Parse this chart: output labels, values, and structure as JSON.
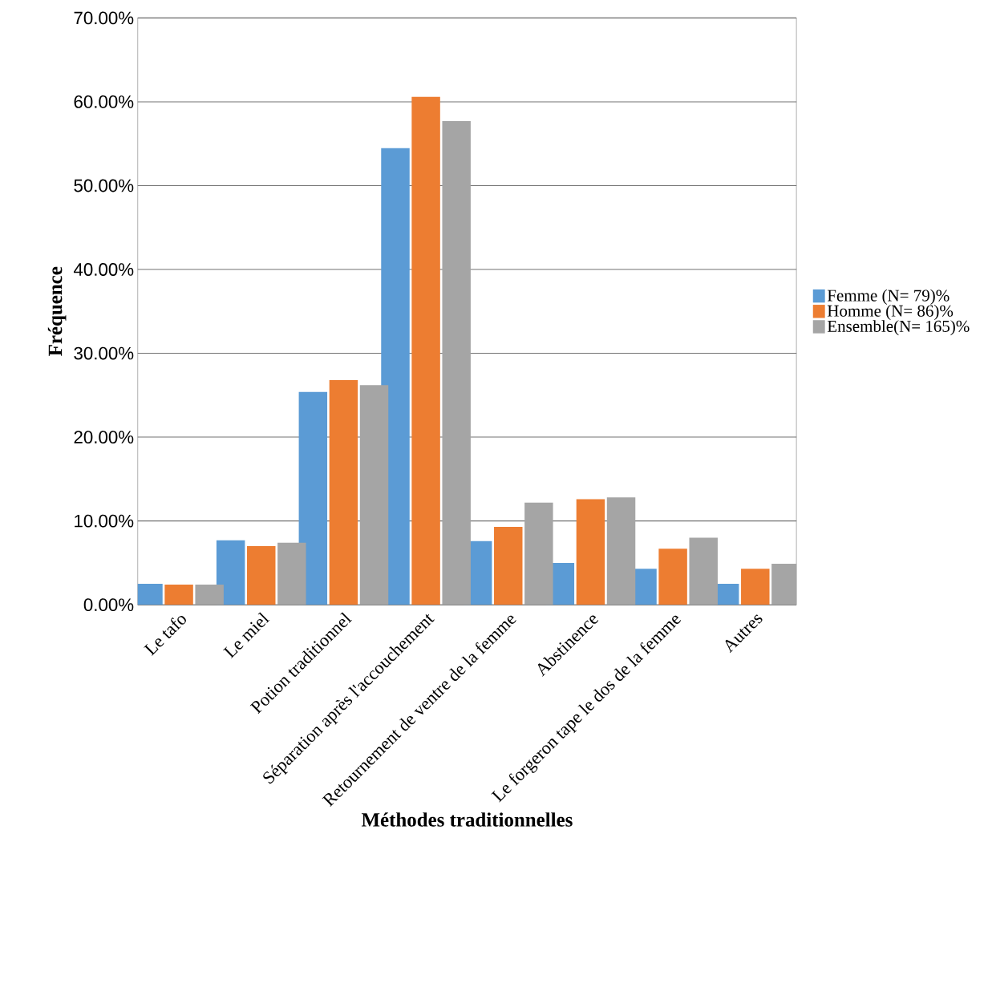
{
  "chart_data": {
    "type": "bar",
    "xlabel": "Méthodes traditionnelles",
    "ylabel": "Fréquence",
    "categories": [
      "Le tafo",
      "Le miel",
      "Potion traditionnel",
      "Séparation  après l'accouchement",
      "Retournement  de ventre de la femme",
      "Abstinence",
      "Le forgeron tape le dos de la femme",
      "Autres"
    ],
    "series": [
      {
        "name": "Femme (N=  79)%",
        "color": "#5b9bd5",
        "values": [
          2.5,
          7.7,
          25.4,
          54.5,
          7.6,
          5.0,
          4.3,
          2.5
        ]
      },
      {
        "name": "Homme (N=  86)%",
        "color": "#ed7d31",
        "values": [
          2.4,
          7.0,
          26.8,
          60.6,
          9.3,
          12.6,
          6.7,
          4.3
        ]
      },
      {
        "name": "Ensemble(N=  165)%",
        "color": "#a5a5a5",
        "values": [
          2.4,
          7.4,
          26.2,
          57.7,
          12.2,
          12.8,
          8.0,
          4.9
        ]
      }
    ],
    "ylim": [
      0,
      70
    ],
    "yticks": [
      {
        "value": 0,
        "label": "0.00%"
      },
      {
        "value": 10,
        "label": "10.00%"
      },
      {
        "value": 20,
        "label": "20.00%"
      },
      {
        "value": 30,
        "label": "30.00%"
      },
      {
        "value": 40,
        "label": "40.00%"
      },
      {
        "value": 50,
        "label": "50.00%"
      },
      {
        "value": 60,
        "label": "60.00%"
      },
      {
        "value": 70,
        "label": "70.00%"
      }
    ],
    "grid": "y",
    "legend": "right"
  }
}
